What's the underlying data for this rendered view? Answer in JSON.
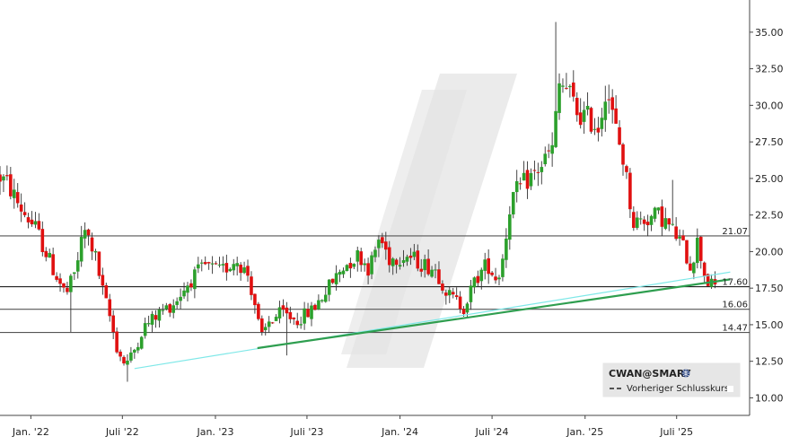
{
  "chart_data": {
    "type": "candlestick",
    "title": "",
    "xlabel": "",
    "ylabel": "",
    "ylim": [
      8.8,
      37.2
    ],
    "x_range": [
      "2021-11-01",
      "2025-11-01"
    ],
    "y_ticks": [
      10.0,
      12.5,
      15.0,
      17.5,
      20.0,
      22.5,
      25.0,
      27.5,
      30.0,
      32.5,
      35.0
    ],
    "y_tick_labels": [
      "10.00",
      "12.50",
      "15.00",
      "17.50",
      "20.00",
      "22.50",
      "25.00",
      "27.50",
      "30.00",
      "32.50",
      "35.00"
    ],
    "x_ticks": [
      {
        "date": "2022-01-01",
        "label": "Jan. '22"
      },
      {
        "date": "2022-07-01",
        "label": "Juli '22"
      },
      {
        "date": "2023-01-01",
        "label": "Jan. '23"
      },
      {
        "date": "2023-07-01",
        "label": "Juli '23"
      },
      {
        "date": "2024-01-01",
        "label": "Jan. '24"
      },
      {
        "date": "2024-07-01",
        "label": "Juli '24"
      },
      {
        "date": "2025-01-01",
        "label": "Jan. '25"
      },
      {
        "date": "2025-07-01",
        "label": "Juli '25"
      }
    ],
    "grid": false,
    "legend_position": "bottom-right",
    "legend": {
      "title": "CWAN@SMART",
      "items": [
        "Vorheriger Schlusskurs"
      ]
    },
    "up_color": "#2ca02c",
    "down_color": "#e01010",
    "price_path": [
      [
        "2021-11-01",
        25.2
      ],
      [
        "2021-11-20",
        24.6
      ],
      [
        "2021-12-15",
        23.0
      ],
      [
        "2022-01-15",
        21.5
      ],
      [
        "2022-02-15",
        19.0
      ],
      [
        "2022-03-15",
        17.0
      ],
      [
        "2022-04-01",
        18.5
      ],
      [
        "2022-04-20",
        21.5
      ],
      [
        "2022-05-10",
        20.0
      ],
      [
        "2022-05-25",
        17.5
      ],
      [
        "2022-06-10",
        15.5
      ],
      [
        "2022-06-25",
        13.2
      ],
      [
        "2022-07-10",
        12.3
      ],
      [
        "2022-07-25",
        13.0
      ],
      [
        "2022-08-15",
        14.8
      ],
      [
        "2022-09-15",
        15.8
      ],
      [
        "2022-10-15",
        16.5
      ],
      [
        "2022-11-15",
        18.0
      ],
      [
        "2022-12-15",
        19.0
      ],
      [
        "2023-01-15",
        18.6
      ],
      [
        "2023-02-15",
        19.5
      ],
      [
        "2023-03-10",
        18.4
      ],
      [
        "2023-03-25",
        16.2
      ],
      [
        "2023-04-05",
        14.0
      ],
      [
        "2023-04-20",
        15.2
      ],
      [
        "2023-05-15",
        15.8
      ],
      [
        "2023-06-15",
        15.3
      ],
      [
        "2023-07-15",
        16.0
      ],
      [
        "2023-08-15",
        17.5
      ],
      [
        "2023-09-15",
        19.0
      ],
      [
        "2023-10-15",
        19.8
      ],
      [
        "2023-11-05",
        18.8
      ],
      [
        "2023-11-25",
        21.0
      ],
      [
        "2023-12-15",
        19.5
      ],
      [
        "2024-01-15",
        19.8
      ],
      [
        "2024-02-15",
        19.2
      ],
      [
        "2024-03-15",
        18.8
      ],
      [
        "2024-04-10",
        17.0
      ],
      [
        "2024-05-10",
        16.2
      ],
      [
        "2024-06-01",
        18.0
      ],
      [
        "2024-06-25",
        19.2
      ],
      [
        "2024-07-15",
        18.0
      ],
      [
        "2024-07-28",
        20.0
      ],
      [
        "2024-08-10",
        23.5
      ],
      [
        "2024-09-01",
        24.5
      ],
      [
        "2024-10-01",
        25.5
      ],
      [
        "2024-11-01",
        27.0
      ],
      [
        "2024-11-15",
        31.5
      ],
      [
        "2024-12-01",
        31.0
      ],
      [
        "2024-12-20",
        29.5
      ],
      [
        "2025-01-15",
        29.0
      ],
      [
        "2025-02-01",
        28.5
      ],
      [
        "2025-02-15",
        31.5
      ],
      [
        "2025-03-01",
        29.0
      ],
      [
        "2025-03-20",
        26.5
      ],
      [
        "2025-04-10",
        22.0
      ],
      [
        "2025-05-01",
        22.2
      ],
      [
        "2025-06-01",
        22.5
      ],
      [
        "2025-06-25",
        21.5
      ],
      [
        "2025-07-15",
        20.5
      ],
      [
        "2025-08-01",
        19.0
      ],
      [
        "2025-08-15",
        20.7
      ],
      [
        "2025-09-01",
        18.0
      ],
      [
        "2025-09-15",
        17.6
      ]
    ],
    "spikes": [
      {
        "date": "2024-11-07",
        "high": 35.7
      },
      {
        "date": "2022-07-10",
        "low": 11.1
      },
      {
        "date": "2023-05-20",
        "low": 12.9
      },
      {
        "date": "2022-03-20",
        "low": 14.5
      },
      {
        "date": "2025-06-20",
        "high": 24.9
      }
    ],
    "levels": [
      {
        "value": 21.07,
        "label": "21.07",
        "color": "#555555",
        "style": "solid"
      },
      {
        "value": 17.6,
        "label": "17.60",
        "color": "#222222",
        "style": "solid"
      },
      {
        "value": 16.06,
        "label": "16.06",
        "color": "#555555",
        "style": "solid"
      },
      {
        "value": 14.47,
        "label": "14.47",
        "color": "#555555",
        "style": "solid"
      }
    ],
    "trendlines": [
      {
        "from": [
          "2022-07-25",
          12.0
        ],
        "to": [
          "2025-10-15",
          18.6
        ],
        "color": "#7fe8e8",
        "width": 1.2
      },
      {
        "from": [
          "2023-03-25",
          13.4
        ],
        "to": [
          "2025-10-15",
          18.1
        ],
        "color": "#2e9e4f",
        "width": 2.2
      }
    ]
  }
}
